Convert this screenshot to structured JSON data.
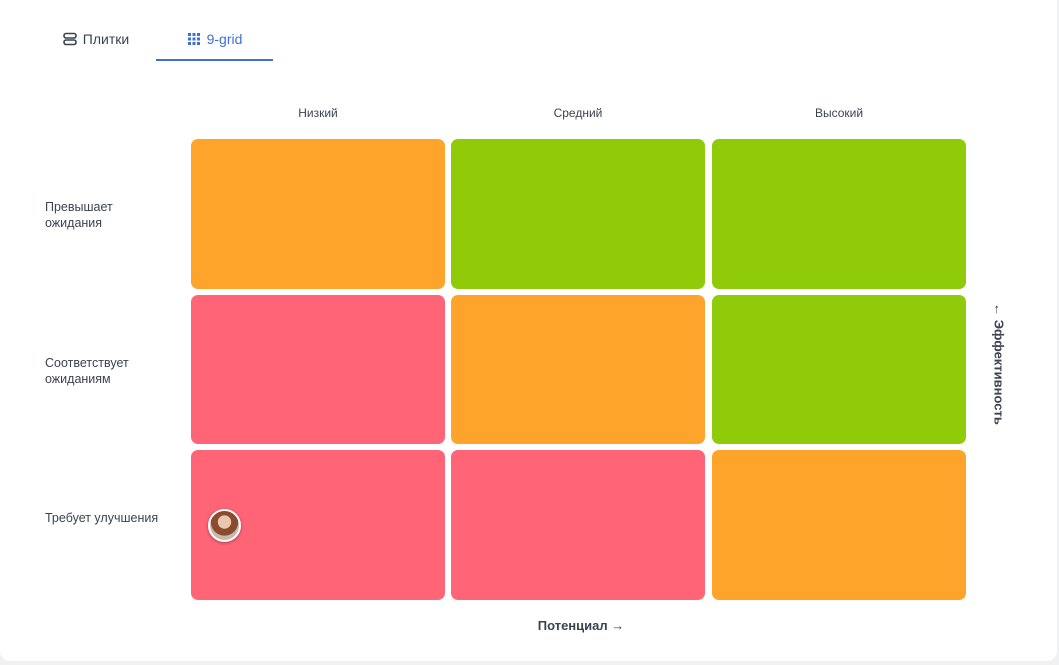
{
  "tabs": [
    {
      "label": "Плитки",
      "icon": "tiles-icon"
    },
    {
      "label": "9-grid",
      "icon": "grid-icon"
    }
  ],
  "columns": [
    "Низкий",
    "Средний",
    "Высокий"
  ],
  "rows": [
    "Превышает ожидания",
    "Соответствует ожиданиям",
    "Требует улучшения"
  ],
  "colors": {
    "green": "#8fcb08",
    "orange": "#ffa42b",
    "red": "#ff6576",
    "accent": "#3f6fd6"
  },
  "cells": [
    [
      "orange",
      "green",
      "green"
    ],
    [
      "red",
      "orange",
      "green"
    ],
    [
      "red",
      "red",
      "orange"
    ]
  ],
  "axis_x_label": "Потенциал →",
  "axis_y_label": "← Эффективность"
}
